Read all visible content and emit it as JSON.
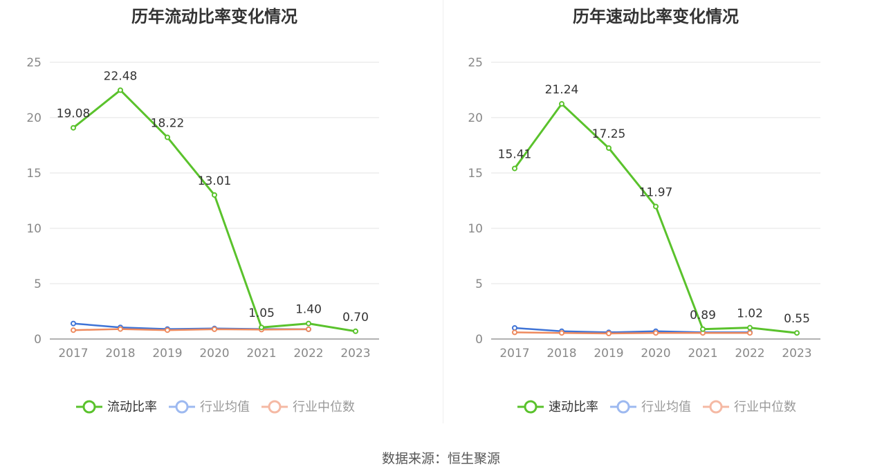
{
  "colors": {
    "main_series": "#5ac22c",
    "industry_avg": "#3e73d6",
    "industry_median": "#ee8a5e",
    "legend_avg": "#9db9f0",
    "legend_median": "#f5b9a4"
  },
  "chart_data": [
    {
      "type": "line",
      "title": "历年流动比率变化情况",
      "categories": [
        "2017",
        "2018",
        "2019",
        "2020",
        "2021",
        "2022",
        "2023"
      ],
      "ylim": [
        0,
        25
      ],
      "yticks": [
        "0",
        "5",
        "10",
        "15",
        "20",
        "25"
      ],
      "ytick_values": [
        0,
        5,
        10,
        15,
        20,
        25
      ],
      "grid": true,
      "legend_position": "bottom",
      "series": [
        {
          "name": "流动比率",
          "role": "main",
          "values": [
            19.08,
            22.48,
            18.22,
            13.01,
            1.05,
            1.4,
            0.7
          ],
          "labels": [
            "19.08",
            "22.48",
            "18.22",
            "13.01",
            "1.05",
            "1.40",
            "0.70"
          ]
        },
        {
          "name": "行业均值",
          "role": "avg",
          "values": [
            1.4,
            1.05,
            0.9,
            0.95,
            0.9,
            0.88,
            null
          ]
        },
        {
          "name": "行业中位数",
          "role": "median",
          "values": [
            0.8,
            0.9,
            0.8,
            0.88,
            0.85,
            0.88,
            null
          ]
        }
      ]
    },
    {
      "type": "line",
      "title": "历年速动比率变化情况",
      "categories": [
        "2017",
        "2018",
        "2019",
        "2020",
        "2021",
        "2022",
        "2023"
      ],
      "ylim": [
        0,
        25
      ],
      "yticks": [
        "0",
        "5",
        "10",
        "15",
        "20",
        "25"
      ],
      "ytick_values": [
        0,
        5,
        10,
        15,
        20,
        25
      ],
      "grid": true,
      "legend_position": "bottom",
      "series": [
        {
          "name": "速动比率",
          "role": "main",
          "values": [
            15.41,
            21.24,
            17.25,
            11.97,
            0.89,
            1.02,
            0.55
          ],
          "labels": [
            "15.41",
            "21.24",
            "17.25",
            "11.97",
            "0.89",
            "1.02",
            "0.55"
          ]
        },
        {
          "name": "行业均值",
          "role": "avg",
          "values": [
            1.0,
            0.7,
            0.6,
            0.7,
            0.6,
            0.6,
            null
          ]
        },
        {
          "name": "行业中位数",
          "role": "median",
          "values": [
            0.6,
            0.55,
            0.5,
            0.55,
            0.55,
            0.55,
            null
          ]
        }
      ]
    }
  ],
  "footer": {
    "source": "数据来源：恒生聚源"
  }
}
